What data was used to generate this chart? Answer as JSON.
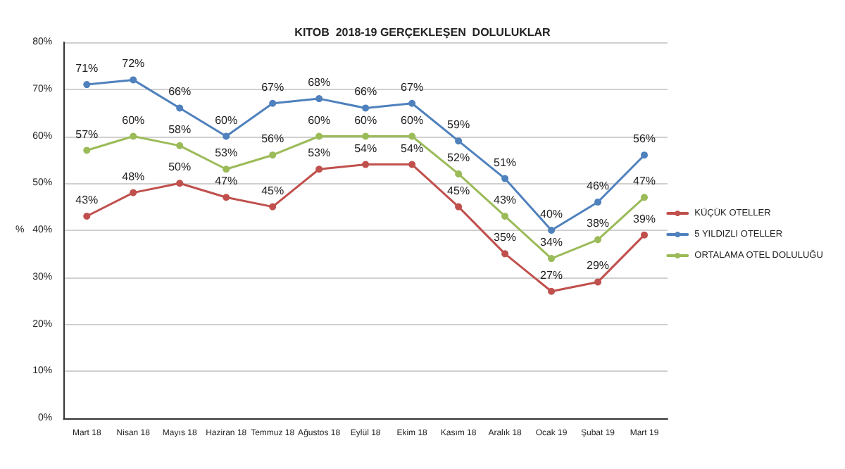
{
  "chart_data": {
    "type": "line",
    "title": "KITOB  2018-19 GERÇEKLEŞEN  DOLULUKLAR",
    "ylabel": "%",
    "categories": [
      "Mart 18",
      "Nisan 18",
      "Mayıs 18",
      "Haziran 18",
      "Temmuz 18",
      "Ağustos 18",
      "Eylül 18",
      "Ekim 18",
      "Kasım 18",
      "Aralık 18",
      "Ocak 19",
      "Şubat 19",
      "Mart 19"
    ],
    "series": [
      {
        "name": "KÜÇÜK OTELLER",
        "color": "#c0504d",
        "values": [
          43,
          48,
          50,
          47,
          45,
          53,
          54,
          54,
          45,
          35,
          27,
          29,
          39
        ],
        "value_labels": [
          "43%",
          "48%",
          "50%",
          "47%",
          "45%",
          "53%",
          "54%",
          "54%",
          "45%",
          "35%",
          "27%",
          "29%",
          "39%"
        ]
      },
      {
        "name": "5 YILDIZLI OTELLER",
        "color": "#4f81bd",
        "values": [
          71,
          72,
          66,
          60,
          67,
          68,
          66,
          67,
          59,
          51,
          40,
          46,
          56
        ],
        "value_labels": [
          "71%",
          "72%",
          "66%",
          "60%",
          "67%",
          "68%",
          "66%",
          "67%",
          "59%",
          "51%",
          "40%",
          "46%",
          "56%"
        ]
      },
      {
        "name": "ORTALAMA OTEL DOLULUĞU",
        "color": "#9bbb59",
        "values": [
          57,
          60,
          58,
          53,
          56,
          60,
          60,
          60,
          52,
          43,
          34,
          38,
          47
        ],
        "value_labels": [
          "57%",
          "60%",
          "58%",
          "53%",
          "56%",
          "60%",
          "60%",
          "60%",
          "52%",
          "43%",
          "34%",
          "38%",
          "47%"
        ]
      }
    ],
    "ylim": [
      0,
      80
    ],
    "yticks": [
      {
        "value": 0,
        "label": "0%"
      },
      {
        "value": 10,
        "label": "10%"
      },
      {
        "value": 20,
        "label": "20%"
      },
      {
        "value": 30,
        "label": "30%"
      },
      {
        "value": 40,
        "label": "40%"
      },
      {
        "value": 50,
        "label": "50%"
      },
      {
        "value": 60,
        "label": "60%"
      },
      {
        "value": 70,
        "label": "70%"
      },
      {
        "value": 80,
        "label": "80%"
      }
    ],
    "grid": "y",
    "legend": "right",
    "marker": "circle",
    "line_style": "solid"
  }
}
